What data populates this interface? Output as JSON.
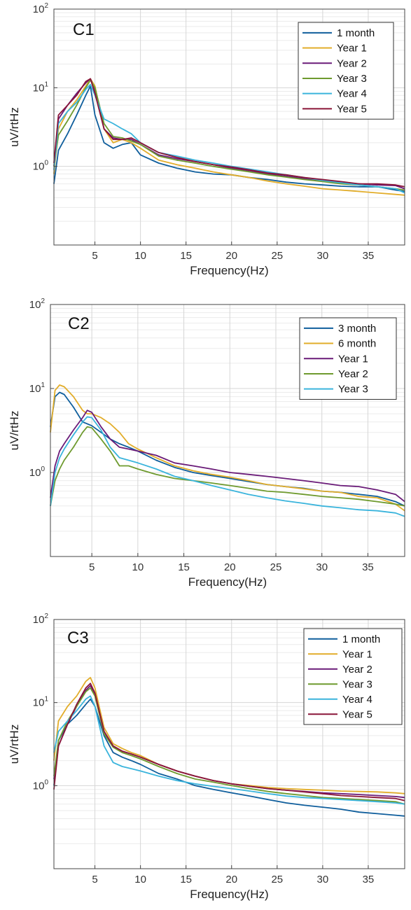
{
  "colors": {
    "blue": "#0f5e9c",
    "gold": "#e2ad2a",
    "purple": "#6a1b78",
    "green": "#6e9a2e",
    "cyan": "#3ab4dc",
    "maroon": "#8a1538"
  },
  "chart_data": [
    {
      "type": "line",
      "panel_label": "C1",
      "xlabel": "Frequency(Hz)",
      "ylabel": "uV/rtHz",
      "xlim": [
        0.5,
        39
      ],
      "xticks": [
        5,
        10,
        15,
        20,
        25,
        30,
        35
      ],
      "ylim": [
        0.1,
        100
      ],
      "yscale": "log",
      "yticks": [
        "10^0",
        "10^1",
        "10^2"
      ],
      "grid": true,
      "legend_position": "top-right",
      "x": [
        0.5,
        1,
        2,
        3,
        4,
        4.5,
        5,
        6,
        7,
        8,
        9,
        10,
        12,
        14,
        16,
        18,
        20,
        22,
        24,
        26,
        28,
        30,
        32,
        34,
        36,
        38,
        39
      ],
      "series": [
        {
          "name": "1 month",
          "color": "blue",
          "values": [
            0.6,
            1.6,
            2.6,
            4.5,
            8,
            10.5,
            4.5,
            2.0,
            1.7,
            1.9,
            2.0,
            1.4,
            1.1,
            0.95,
            0.85,
            0.8,
            0.78,
            0.72,
            0.68,
            0.63,
            0.6,
            0.58,
            0.56,
            0.55,
            0.55,
            0.5,
            0.48
          ]
        },
        {
          "name": "Year 1",
          "color": "gold",
          "values": [
            0.8,
            3.0,
            5.0,
            7.0,
            10.5,
            13,
            10.5,
            3.0,
            2.0,
            2.2,
            2.0,
            1.7,
            1.2,
            1.05,
            0.95,
            0.85,
            0.78,
            0.72,
            0.65,
            0.6,
            0.56,
            0.52,
            0.5,
            0.48,
            0.46,
            0.44,
            0.43
          ]
        },
        {
          "name": "Year 2",
          "color": "purple",
          "values": [
            1.0,
            4.0,
            6.0,
            8.5,
            11.5,
            13,
            9.5,
            3.0,
            2.3,
            2.2,
            2.2,
            1.9,
            1.4,
            1.25,
            1.15,
            1.05,
            0.95,
            0.88,
            0.8,
            0.75,
            0.7,
            0.66,
            0.62,
            0.6,
            0.58,
            0.57,
            0.52
          ]
        },
        {
          "name": "Year 3",
          "color": "green",
          "values": [
            1.0,
            2.5,
            3.8,
            6.0,
            10,
            12.5,
            10,
            3.5,
            2.4,
            2.3,
            2.1,
            1.9,
            1.35,
            1.2,
            1.1,
            1.0,
            0.92,
            0.85,
            0.78,
            0.73,
            0.68,
            0.64,
            0.6,
            0.58,
            0.55,
            0.52,
            0.5
          ]
        },
        {
          "name": "Year 4",
          "color": "cyan",
          "values": [
            0.9,
            3.5,
            5.0,
            6.5,
            9.5,
            11,
            8,
            4.0,
            3.5,
            3.0,
            2.6,
            2.0,
            1.5,
            1.35,
            1.2,
            1.1,
            1.0,
            0.92,
            0.85,
            0.78,
            0.72,
            0.66,
            0.62,
            0.58,
            0.55,
            0.52,
            0.46
          ]
        },
        {
          "name": "Year 5",
          "color": "maroon",
          "values": [
            1.1,
            4.5,
            6.0,
            8.0,
            12,
            13,
            8.5,
            3.0,
            2.2,
            2.2,
            2.3,
            2.0,
            1.5,
            1.3,
            1.15,
            1.05,
            0.98,
            0.9,
            0.82,
            0.78,
            0.72,
            0.68,
            0.64,
            0.6,
            0.6,
            0.58,
            0.55
          ]
        }
      ]
    },
    {
      "type": "line",
      "panel_label": "C2",
      "xlabel": "Frequency(Hz)",
      "ylabel": "uV/rtHz",
      "xlim": [
        0.5,
        39
      ],
      "xticks": [
        5,
        10,
        15,
        20,
        25,
        30,
        35
      ],
      "ylim": [
        0.1,
        100
      ],
      "yscale": "log",
      "yticks": [
        "10^0",
        "10^1",
        "10^2"
      ],
      "grid": true,
      "legend_position": "top-right",
      "x": [
        0.5,
        1,
        1.5,
        2,
        3,
        4,
        4.5,
        5,
        6,
        7,
        8,
        9,
        10,
        12,
        14,
        16,
        18,
        20,
        22,
        24,
        26,
        28,
        30,
        32,
        34,
        36,
        38,
        39
      ],
      "series": [
        {
          "name": "3 month",
          "color": "blue",
          "values": [
            3.5,
            8.0,
            9.0,
            8.5,
            6.0,
            4.0,
            3.8,
            3.6,
            3.0,
            2.5,
            2.2,
            2.0,
            1.8,
            1.4,
            1.15,
            1.0,
            0.92,
            0.85,
            0.78,
            0.72,
            0.68,
            0.65,
            0.6,
            0.58,
            0.55,
            0.52,
            0.45,
            0.4
          ]
        },
        {
          "name": "6 month",
          "color": "gold",
          "values": [
            3.0,
            9.5,
            11,
            10.5,
            8.0,
            5.5,
            5.0,
            5.0,
            4.5,
            3.8,
            3.0,
            2.2,
            1.9,
            1.5,
            1.2,
            1.05,
            0.95,
            0.88,
            0.8,
            0.72,
            0.68,
            0.64,
            0.6,
            0.58,
            0.52,
            0.5,
            0.42,
            0.35
          ]
        },
        {
          "name": "Year 1",
          "color": "purple",
          "values": [
            0.5,
            1.2,
            1.8,
            2.2,
            3.2,
            4.5,
            5.5,
            5.2,
            3.5,
            2.5,
            2.0,
            1.9,
            1.8,
            1.6,
            1.3,
            1.2,
            1.1,
            1.0,
            0.95,
            0.9,
            0.85,
            0.8,
            0.75,
            0.7,
            0.68,
            0.62,
            0.55,
            0.45
          ]
        },
        {
          "name": "Year 2",
          "color": "green",
          "values": [
            0.4,
            0.8,
            1.1,
            1.4,
            2.0,
            3.0,
            3.5,
            3.4,
            2.5,
            1.8,
            1.2,
            1.2,
            1.1,
            0.95,
            0.85,
            0.8,
            0.75,
            0.7,
            0.65,
            0.6,
            0.58,
            0.55,
            0.52,
            0.5,
            0.48,
            0.45,
            0.42,
            0.4
          ]
        },
        {
          "name": "Year 3",
          "color": "cyan",
          "values": [
            0.4,
            1.0,
            1.5,
            1.9,
            2.8,
            4.0,
            4.6,
            4.5,
            3.2,
            2.0,
            1.5,
            1.4,
            1.3,
            1.1,
            0.9,
            0.8,
            0.7,
            0.62,
            0.55,
            0.5,
            0.46,
            0.43,
            0.4,
            0.38,
            0.36,
            0.35,
            0.33,
            0.3
          ]
        }
      ]
    },
    {
      "type": "line",
      "panel_label": "C3",
      "xlabel": "Frequency(Hz)",
      "ylabel": "uV/rtHz",
      "xlim": [
        0.5,
        39
      ],
      "xticks": [
        5,
        10,
        15,
        20,
        25,
        30,
        35
      ],
      "ylim": [
        0.1,
        100
      ],
      "yscale": "log",
      "yticks": [
        "10^0",
        "10^1",
        "10^2"
      ],
      "grid": true,
      "legend_position": "top-right",
      "x": [
        0.5,
        1,
        2,
        3,
        4,
        4.5,
        5,
        6,
        7,
        8,
        9,
        10,
        12,
        14,
        16,
        18,
        20,
        22,
        24,
        26,
        28,
        30,
        32,
        34,
        36,
        38,
        39
      ],
      "series": [
        {
          "name": "1 month",
          "color": "blue",
          "values": [
            1.0,
            3.5,
            5.5,
            7.0,
            9.5,
            11,
            9.0,
            4.0,
            2.5,
            2.2,
            2.0,
            1.8,
            1.4,
            1.2,
            1.0,
            0.9,
            0.82,
            0.75,
            0.68,
            0.62,
            0.58,
            0.55,
            0.52,
            0.48,
            0.46,
            0.44,
            0.43
          ]
        },
        {
          "name": "Year 1",
          "color": "gold",
          "values": [
            2.0,
            6.0,
            9.0,
            12.0,
            18,
            20,
            15,
            5.0,
            3.2,
            2.8,
            2.5,
            2.3,
            1.8,
            1.5,
            1.3,
            1.15,
            1.05,
            1.0,
            0.95,
            0.92,
            0.9,
            0.88,
            0.86,
            0.85,
            0.84,
            0.82,
            0.8
          ]
        },
        {
          "name": "Year 2",
          "color": "purple",
          "values": [
            1.2,
            3.0,
            5.5,
            9.0,
            14,
            16,
            12.5,
            4.5,
            3.0,
            2.6,
            2.4,
            2.2,
            1.8,
            1.5,
            1.3,
            1.15,
            1.05,
            0.98,
            0.92,
            0.88,
            0.85,
            0.82,
            0.8,
            0.78,
            0.76,
            0.74,
            0.72
          ]
        },
        {
          "name": "Year 3",
          "color": "green",
          "values": [
            1.3,
            3.5,
            6.0,
            9.0,
            13.5,
            15,
            12,
            4.2,
            2.9,
            2.5,
            2.3,
            2.1,
            1.7,
            1.4,
            1.2,
            1.1,
            1.0,
            0.92,
            0.85,
            0.8,
            0.76,
            0.72,
            0.7,
            0.68,
            0.66,
            0.64,
            0.6
          ]
        },
        {
          "name": "Year 4",
          "color": "cyan",
          "values": [
            2.5,
            4.5,
            6.0,
            8.0,
            11,
            12,
            9.0,
            3.0,
            1.9,
            1.7,
            1.6,
            1.5,
            1.3,
            1.15,
            1.05,
            0.98,
            0.92,
            0.86,
            0.8,
            0.75,
            0.72,
            0.7,
            0.68,
            0.66,
            0.64,
            0.62,
            0.6
          ]
        },
        {
          "name": "Year 5",
          "color": "maroon",
          "values": [
            0.9,
            3.0,
            5.5,
            9.5,
            15,
            17,
            13,
            4.5,
            3.0,
            2.6,
            2.4,
            2.2,
            1.8,
            1.5,
            1.3,
            1.15,
            1.05,
            0.98,
            0.92,
            0.88,
            0.84,
            0.8,
            0.76,
            0.74,
            0.72,
            0.7,
            0.66
          ]
        }
      ]
    }
  ]
}
